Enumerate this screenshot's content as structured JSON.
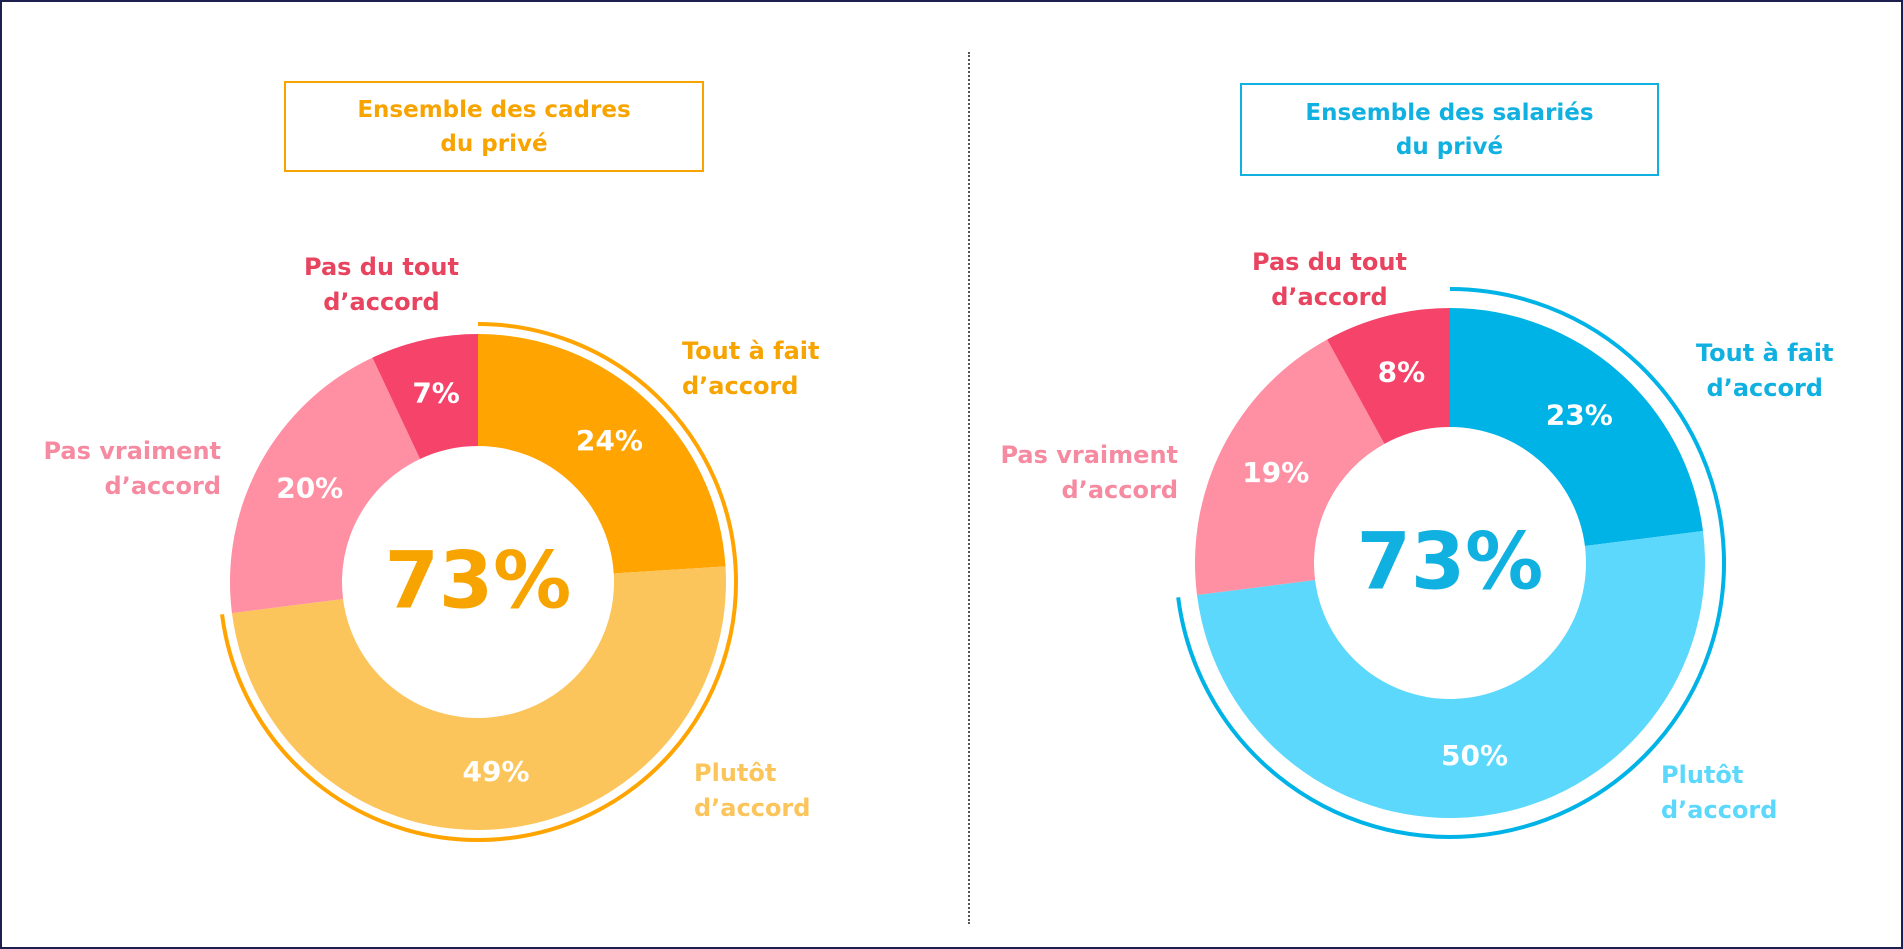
{
  "chart_data": [
    {
      "type": "donut",
      "title": "Ensemble des cadres\ndu privé",
      "center_label": "73%",
      "title_color": "#f7a400",
      "categories": [
        "Tout à fait\nd’accord",
        "Plutôt\nd’accord",
        "Pas vraiment\nd’accord",
        "Pas du tout\nd’accord"
      ],
      "values": [
        24,
        49,
        20,
        7
      ],
      "value_labels": [
        "24%",
        "49%",
        "20%",
        "7%"
      ],
      "colors": [
        "#ffa400",
        "#fcc55b",
        "#ff8fa3",
        "#f5436a"
      ],
      "label_colors": [
        "#f7a400",
        "#fcc55b",
        "#f58aa0",
        "#e8435f"
      ]
    },
    {
      "type": "donut",
      "title": "Ensemble des salariés\ndu privé",
      "center_label": "73%",
      "title_color": "#10b0e0",
      "categories": [
        "Tout à fait\nd’accord",
        "Plutôt\nd’accord",
        "Pas vraiment\nd’accord",
        "Pas du tout\nd’accord"
      ],
      "values": [
        23,
        50,
        19,
        8
      ],
      "value_labels": [
        "23%",
        "50%",
        "19%",
        "8%"
      ],
      "colors": [
        "#00b3e6",
        "#5bd8fc",
        "#ff8fa3",
        "#f5436a"
      ],
      "label_colors": [
        "#10b0e0",
        "#5bd8fc",
        "#f58aa0",
        "#e8435f"
      ]
    }
  ]
}
